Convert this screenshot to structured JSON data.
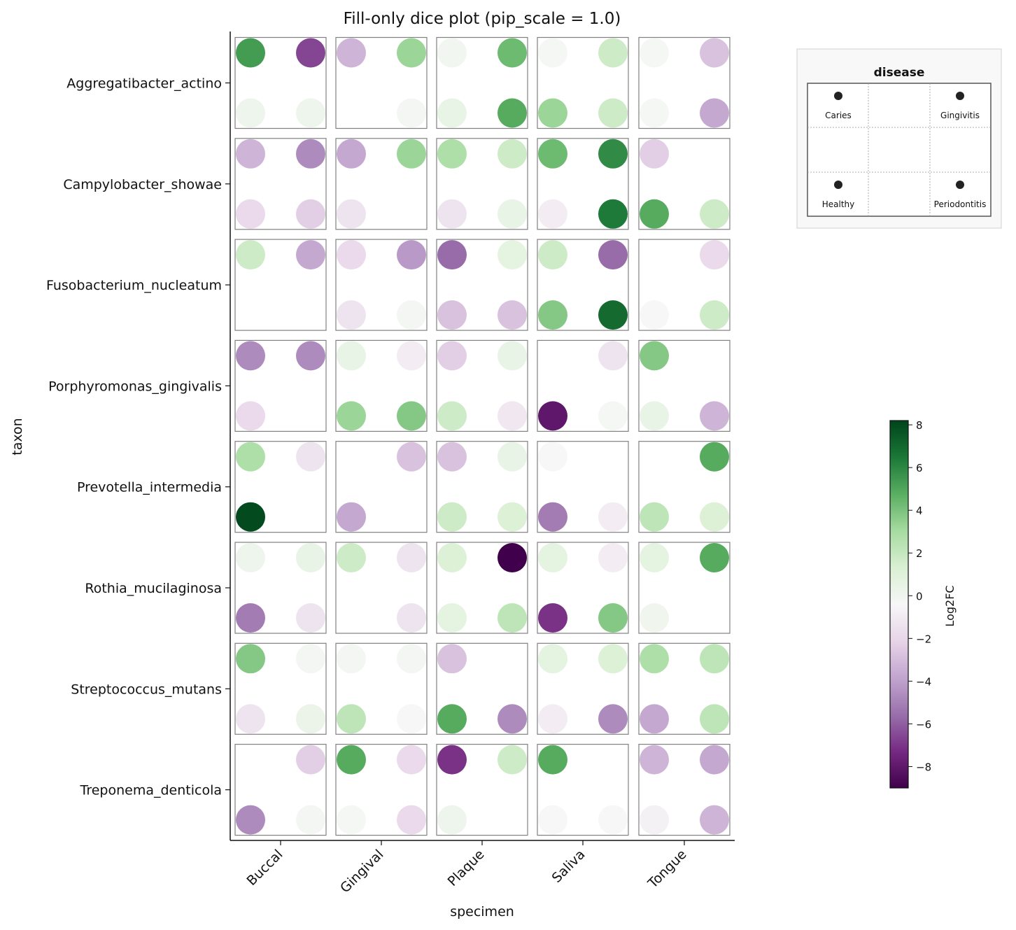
{
  "chart_data": {
    "type": "dice",
    "title": "Fill-only dice plot (pip_scale = 1.0)",
    "xlabel": "specimen",
    "ylabel": "taxon",
    "categories_x": [
      "Buccal",
      "Gingival",
      "Plaque",
      "Saliva",
      "Tongue"
    ],
    "categories_y": [
      "Aggregatibacter_actino",
      "Campylobacter_showae",
      "Fusobacterium_nucleatum",
      "Porphyromonas_gingivalis",
      "Prevotella_intermedia",
      "Rothia_mucilaginosa",
      "Streptococcus_mutans",
      "Treponema_denticola"
    ],
    "dice_categories": [
      "Caries",
      "Gingivitis",
      "Healthy",
      "Periodontitis"
    ],
    "legend": {
      "title": "disease",
      "position": "top-right"
    },
    "colorbar": {
      "label": "Log2FC",
      "range": [
        -9,
        8.2
      ],
      "ticks": [
        -8,
        -6,
        -4,
        -2,
        0,
        2,
        4,
        6,
        8
      ],
      "colormap": "PRGn"
    },
    "values": [
      [
        [
          5.5,
          -6.5,
          0.5,
          0.5
        ],
        [
          -3.0,
          3.5,
          null,
          0.2
        ],
        [
          0.3,
          4.5,
          0.8,
          5.0
        ],
        [
          0.1,
          2.0,
          3.5,
          2.0
        ],
        [
          0.1,
          -2.5,
          0.1,
          -3.5
        ]
      ],
      [
        [
          -3.0,
          -4.5,
          -1.5,
          -2.0
        ],
        [
          -3.5,
          3.5,
          -1.0,
          null
        ],
        [
          3.0,
          2.0,
          -1.0,
          0.8
        ],
        [
          4.5,
          6.0,
          -0.5,
          6.5
        ],
        [
          -2.0,
          null,
          5.0,
          2.0
        ]
      ],
      [
        [
          2.0,
          -3.5,
          null,
          null
        ],
        [
          -1.5,
          -4.0,
          -1.0,
          0.2
        ],
        [
          -5.5,
          1.0,
          -2.5,
          -2.5
        ],
        [
          2.0,
          -5.5,
          4.0,
          7.0
        ],
        [
          null,
          -1.5,
          0.0,
          2.0
        ]
      ],
      [
        [
          -4.5,
          -4.5,
          -1.5,
          null
        ],
        [
          0.8,
          -0.5,
          3.5,
          4.0
        ],
        [
          -2.0,
          0.8,
          2.0,
          -0.8
        ],
        [
          null,
          -1.0,
          -8.0,
          0.1
        ],
        [
          4.0,
          null,
          0.8,
          -3.0
        ]
      ],
      [
        [
          3.0,
          -1.0,
          8.0,
          null
        ],
        [
          null,
          -2.5,
          -3.5,
          null
        ],
        [
          -2.5,
          0.8,
          2.0,
          1.5
        ],
        [
          0.0,
          null,
          -5.0,
          -0.5
        ],
        [
          null,
          5.0,
          2.5,
          1.5
        ]
      ],
      [
        [
          0.5,
          0.8,
          -5.0,
          -1.0
        ],
        [
          2.0,
          -1.0,
          null,
          -1.0
        ],
        [
          1.5,
          -9.0,
          1.0,
          2.5
        ],
        [
          1.0,
          -0.5,
          -7.0,
          4.0
        ],
        [
          1.0,
          5.0,
          0.4,
          null
        ]
      ],
      [
        [
          4.0,
          0.2,
          -1.0,
          0.6
        ],
        [
          0.2,
          0.2,
          2.5,
          0.0
        ],
        [
          -2.5,
          null,
          5.0,
          -4.5
        ],
        [
          1.0,
          1.5,
          -0.5,
          -4.5
        ],
        [
          3.0,
          2.5,
          -3.5,
          2.5
        ]
      ],
      [
        [
          null,
          -2.0,
          -4.5,
          0.2
        ],
        [
          5.0,
          -1.5,
          0.1,
          -1.5
        ],
        [
          -7.0,
          2.0,
          0.5,
          null
        ],
        [
          5.0,
          null,
          0.0,
          0.0
        ],
        [
          -3.0,
          -3.5,
          -0.3,
          -3.0
        ]
      ]
    ]
  }
}
